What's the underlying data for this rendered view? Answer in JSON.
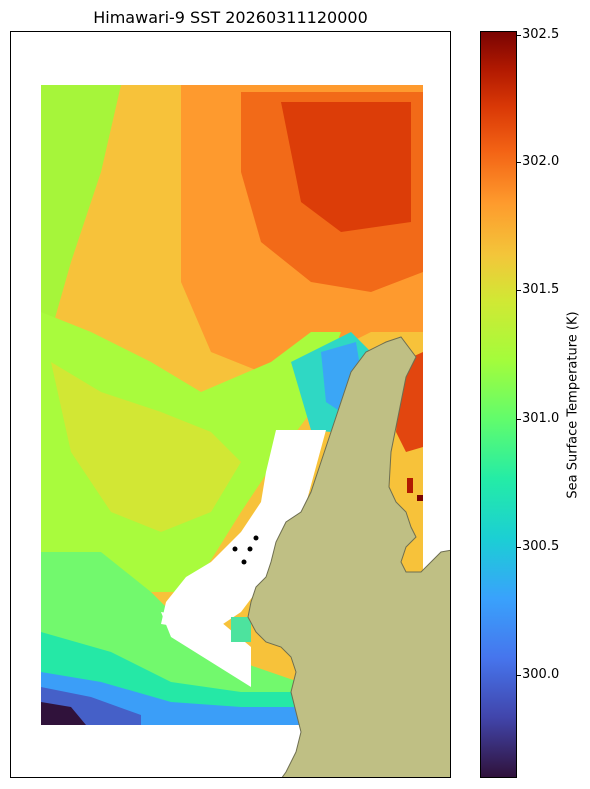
{
  "title": "Himawari-9 SST 20260311120000",
  "colorbar": {
    "label": "Sea Surface Temperature (K)",
    "colormap": "turbo",
    "vmin": 299.6,
    "vmax": 302.5,
    "ticks": [
      "302.5",
      "302.0",
      "301.5",
      "301.0",
      "300.5",
      "300.0"
    ]
  },
  "map": {
    "land_color": "#bfbf84",
    "coast_color": "#6e6e50",
    "nodata_color": "#ffffff"
  }
}
